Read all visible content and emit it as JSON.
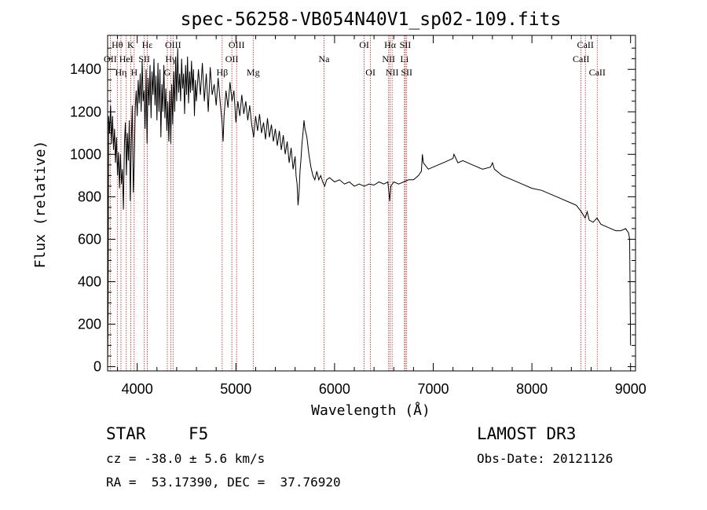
{
  "chart_data": {
    "type": "line",
    "title": "spec-56258-VB054N40V1_sp02-109.fits",
    "xlabel": "Wavelength (Å)",
    "ylabel": "Flux (relative)",
    "xlim": [
      3700,
      9050
    ],
    "ylim": [
      -20,
      1560
    ],
    "xticks": [
      4000,
      5000,
      6000,
      7000,
      8000,
      9000
    ],
    "yticks": [
      0,
      200,
      400,
      600,
      800,
      1000,
      1200,
      1400
    ],
    "line_color": "#000000",
    "marker_color": "#b22222",
    "spectrum": [
      [
        3700,
        0
      ],
      [
        3705,
        250
      ],
      [
        3710,
        1180
      ],
      [
        3720,
        1100
      ],
      [
        3730,
        1230
      ],
      [
        3740,
        1050
      ],
      [
        3750,
        1180
      ],
      [
        3760,
        1020
      ],
      [
        3770,
        1120
      ],
      [
        3780,
        960
      ],
      [
        3790,
        1080
      ],
      [
        3800,
        900
      ],
      [
        3810,
        1010
      ],
      [
        3820,
        840
      ],
      [
        3830,
        1000
      ],
      [
        3840,
        860
      ],
      [
        3850,
        930
      ],
      [
        3860,
        740
      ],
      [
        3870,
        1050
      ],
      [
        3880,
        1150
      ],
      [
        3890,
        900
      ],
      [
        3900,
        1100
      ],
      [
        3910,
        970
      ],
      [
        3920,
        1160
      ],
      [
        3930,
        780
      ],
      [
        3940,
        1050
      ],
      [
        3950,
        1230
      ],
      [
        3960,
        820
      ],
      [
        3970,
        960
      ],
      [
        3980,
        1220
      ],
      [
        3990,
        1300
      ],
      [
        4000,
        1180
      ],
      [
        4010,
        1350
      ],
      [
        4020,
        1240
      ],
      [
        4030,
        1380
      ],
      [
        4040,
        1200
      ],
      [
        4050,
        1440
      ],
      [
        4060,
        1250
      ],
      [
        4070,
        1300
      ],
      [
        4080,
        1120
      ],
      [
        4090,
        1400
      ],
      [
        4100,
        1050
      ],
      [
        4110,
        1360
      ],
      [
        4120,
        1230
      ],
      [
        4130,
        1420
      ],
      [
        4140,
        1170
      ],
      [
        4150,
        1390
      ],
      [
        4160,
        1280
      ],
      [
        4170,
        1450
      ],
      [
        4180,
        1230
      ],
      [
        4190,
        1370
      ],
      [
        4200,
        1160
      ],
      [
        4210,
        1430
      ],
      [
        4220,
        1200
      ],
      [
        4230,
        1400
      ],
      [
        4240,
        1080
      ],
      [
        4250,
        1330
      ],
      [
        4260,
        1200
      ],
      [
        4270,
        1420
      ],
      [
        4280,
        1170
      ],
      [
        4290,
        1310
      ],
      [
        4300,
        1110
      ],
      [
        4310,
        1250
      ],
      [
        4320,
        1060
      ],
      [
        4330,
        1300
      ],
      [
        4340,
        1050
      ],
      [
        4350,
        1330
      ],
      [
        4360,
        1140
      ],
      [
        4370,
        1390
      ],
      [
        4380,
        1200
      ],
      [
        4390,
        1460
      ],
      [
        4400,
        1250
      ],
      [
        4410,
        1500
      ],
      [
        4420,
        1290
      ],
      [
        4430,
        1380
      ],
      [
        4440,
        1250
      ],
      [
        4450,
        1450
      ],
      [
        4460,
        1310
      ],
      [
        4470,
        1380
      ],
      [
        4480,
        1190
      ],
      [
        4490,
        1420
      ],
      [
        4500,
        1280
      ],
      [
        4510,
        1460
      ],
      [
        4520,
        1240
      ],
      [
        4530,
        1390
      ],
      [
        4540,
        1290
      ],
      [
        4550,
        1440
      ],
      [
        4560,
        1300
      ],
      [
        4570,
        1400
      ],
      [
        4580,
        1180
      ],
      [
        4590,
        1350
      ],
      [
        4600,
        1250
      ],
      [
        4620,
        1400
      ],
      [
        4640,
        1280
      ],
      [
        4660,
        1430
      ],
      [
        4680,
        1250
      ],
      [
        4700,
        1380
      ],
      [
        4720,
        1200
      ],
      [
        4740,
        1410
      ],
      [
        4760,
        1280
      ],
      [
        4780,
        1330
      ],
      [
        4800,
        1230
      ],
      [
        4820,
        1360
      ],
      [
        4840,
        1250
      ],
      [
        4860,
        1150
      ],
      [
        4870,
        1060
      ],
      [
        4880,
        1180
      ],
      [
        4900,
        1300
      ],
      [
        4920,
        1220
      ],
      [
        4940,
        1340
      ],
      [
        4960,
        1250
      ],
      [
        4980,
        1300
      ],
      [
        5000,
        1150
      ],
      [
        5020,
        1250
      ],
      [
        5040,
        1180
      ],
      [
        5060,
        1280
      ],
      [
        5080,
        1190
      ],
      [
        5100,
        1250
      ],
      [
        5120,
        1160
      ],
      [
        5140,
        1230
      ],
      [
        5160,
        1140
      ],
      [
        5180,
        1080
      ],
      [
        5200,
        1180
      ],
      [
        5220,
        1110
      ],
      [
        5240,
        1190
      ],
      [
        5260,
        1100
      ],
      [
        5280,
        1150
      ],
      [
        5300,
        1070
      ],
      [
        5320,
        1170
      ],
      [
        5340,
        1080
      ],
      [
        5360,
        1140
      ],
      [
        5380,
        1060
      ],
      [
        5400,
        1120
      ],
      [
        5420,
        1040
      ],
      [
        5440,
        1110
      ],
      [
        5460,
        1020
      ],
      [
        5480,
        1090
      ],
      [
        5500,
        1000
      ],
      [
        5520,
        1060
      ],
      [
        5540,
        960
      ],
      [
        5560,
        1030
      ],
      [
        5580,
        930
      ],
      [
        5600,
        990
      ],
      [
        5610,
        900
      ],
      [
        5620,
        860
      ],
      [
        5630,
        760
      ],
      [
        5640,
        820
      ],
      [
        5650,
        920
      ],
      [
        5660,
        980
      ],
      [
        5670,
        1050
      ],
      [
        5680,
        1100
      ],
      [
        5690,
        1160
      ],
      [
        5700,
        1120
      ],
      [
        5720,
        1080
      ],
      [
        5740,
        1000
      ],
      [
        5760,
        940
      ],
      [
        5780,
        900
      ],
      [
        5800,
        880
      ],
      [
        5820,
        920
      ],
      [
        5840,
        880
      ],
      [
        5860,
        900
      ],
      [
        5880,
        870
      ],
      [
        5900,
        850
      ],
      [
        5920,
        880
      ],
      [
        5950,
        890
      ],
      [
        6000,
        870
      ],
      [
        6050,
        880
      ],
      [
        6100,
        860
      ],
      [
        6150,
        870
      ],
      [
        6200,
        850
      ],
      [
        6250,
        860
      ],
      [
        6300,
        850
      ],
      [
        6350,
        860
      ],
      [
        6400,
        855
      ],
      [
        6450,
        870
      ],
      [
        6500,
        860
      ],
      [
        6540,
        870
      ],
      [
        6560,
        780
      ],
      [
        6570,
        850
      ],
      [
        6600,
        870
      ],
      [
        6650,
        860
      ],
      [
        6700,
        870
      ],
      [
        6750,
        880
      ],
      [
        6800,
        880
      ],
      [
        6850,
        900
      ],
      [
        6880,
        920
      ],
      [
        6890,
        1000
      ],
      [
        6900,
        960
      ],
      [
        6950,
        930
      ],
      [
        7000,
        940
      ],
      [
        7100,
        960
      ],
      [
        7200,
        980
      ],
      [
        7210,
        1000
      ],
      [
        7250,
        960
      ],
      [
        7300,
        970
      ],
      [
        7400,
        950
      ],
      [
        7500,
        930
      ],
      [
        7580,
        940
      ],
      [
        7600,
        960
      ],
      [
        7620,
        930
      ],
      [
        7700,
        900
      ],
      [
        7800,
        880
      ],
      [
        7900,
        860
      ],
      [
        8000,
        840
      ],
      [
        8100,
        830
      ],
      [
        8200,
        810
      ],
      [
        8300,
        790
      ],
      [
        8400,
        770
      ],
      [
        8450,
        760
      ],
      [
        8500,
        730
      ],
      [
        8540,
        700
      ],
      [
        8560,
        730
      ],
      [
        8580,
        690
      ],
      [
        8620,
        680
      ],
      [
        8660,
        700
      ],
      [
        8700,
        670
      ],
      [
        8750,
        660
      ],
      [
        8800,
        650
      ],
      [
        8850,
        640
      ],
      [
        8900,
        640
      ],
      [
        8950,
        650
      ],
      [
        8980,
        630
      ],
      [
        8990,
        600
      ],
      [
        9000,
        100
      ]
    ],
    "lines": [
      {
        "label": "Hθ",
        "wavelength": 3798,
        "row": 0
      },
      {
        "label": "OII",
        "wavelength": 3727,
        "row": 1
      },
      {
        "label": "Hη",
        "wavelength": 3835,
        "row": 2
      },
      {
        "label": "HeI",
        "wavelength": 3889,
        "row": 1
      },
      {
        "label": "K",
        "wavelength": 3934,
        "row": 0
      },
      {
        "label": "H",
        "wavelength": 3969,
        "row": 2
      },
      {
        "label": "SII",
        "wavelength": 4072,
        "row": 1
      },
      {
        "label": "Hε",
        "wavelength": 4102,
        "row": 0
      },
      {
        "label": "OIII",
        "wavelength": 4363,
        "row": 0
      },
      {
        "label": "Hγ",
        "wavelength": 4340,
        "row": 1
      },
      {
        "label": "G",
        "wavelength": 4305,
        "row": 2
      },
      {
        "label": "Hβ",
        "wavelength": 4861,
        "row": 2
      },
      {
        "label": "OIII",
        "wavelength": 5007,
        "row": 0
      },
      {
        "label": "OII",
        "wavelength": 4959,
        "row": 1
      },
      {
        "label": "Mg",
        "wavelength": 5175,
        "row": 2
      },
      {
        "label": "Na",
        "wavelength": 5893,
        "row": 1
      },
      {
        "label": "OI",
        "wavelength": 6300,
        "row": 0
      },
      {
        "label": "OI",
        "wavelength": 6364,
        "row": 2
      },
      {
        "label": "Hα",
        "wavelength": 6563,
        "row": 0
      },
      {
        "label": "NII",
        "wavelength": 6548,
        "row": 1
      },
      {
        "label": "NII",
        "wavelength": 6583,
        "row": 2
      },
      {
        "label": "SII",
        "wavelength": 6717,
        "row": 0
      },
      {
        "label": "Li",
        "wavelength": 6708,
        "row": 1
      },
      {
        "label": "SII",
        "wavelength": 6731,
        "row": 2
      },
      {
        "label": "CaII",
        "wavelength": 8542,
        "row": 0
      },
      {
        "label": "CaII",
        "wavelength": 8498,
        "row": 1
      },
      {
        "label": "CaII",
        "wavelength": 8662,
        "row": 2
      }
    ]
  },
  "info": {
    "object_class": "STAR",
    "subclass": "F5",
    "survey": "LAMOST DR3",
    "cz": "cz = -38.0 ± 5.6 km/s",
    "obs_date": "Obs-Date: 20121126",
    "coords": "RA =  53.17390, DEC =  37.76920"
  }
}
